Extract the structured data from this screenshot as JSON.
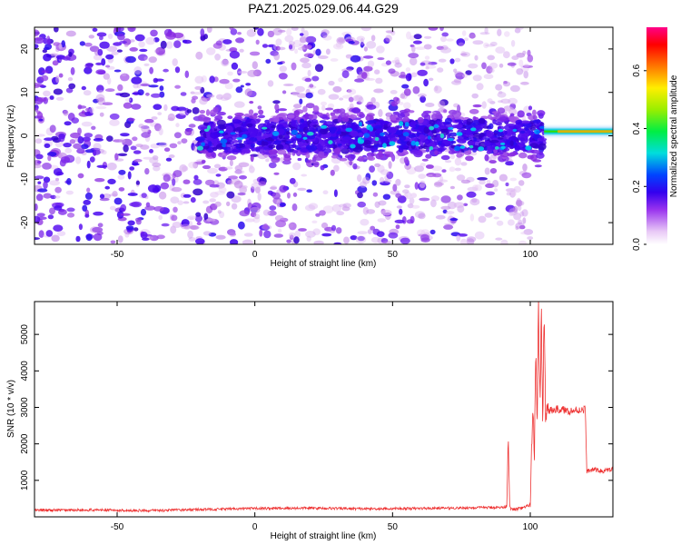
{
  "title": "PAZ1.2025.029.06.44.G29",
  "chart_data": [
    {
      "type": "heatmap",
      "xlabel": "Height of straight line (km)",
      "ylabel": "Frequency (Hz)",
      "xlim": [
        -80,
        130
      ],
      "ylim": [
        -25,
        25
      ],
      "xticks": [
        -50,
        0,
        50,
        100
      ],
      "yticks": [
        -20,
        -10,
        0,
        10,
        20
      ],
      "xtick_labels": [
        "-50",
        "0",
        "50",
        "100"
      ],
      "ytick_labels": [
        "-20",
        "-10",
        "0",
        "10",
        "20"
      ],
      "colorbar": {
        "label": "Normalized spectral amplitude",
        "range": [
          0,
          0.75
        ],
        "ticks": [
          0,
          0.2,
          0.4,
          0.6
        ],
        "tick_labels": [
          "0.0",
          "0.2",
          "0.4",
          "0.6"
        ],
        "colormap": "rainbow"
      },
      "features": {
        "scattered_noise_x": [
          -80,
          100
        ],
        "dense_band_x": [
          -20,
          105
        ],
        "dense_band_halfwidth_hz": 5,
        "tone_x": [
          105,
          130
        ],
        "tone_freq_hz": 1,
        "tone_peak_amplitude": 0.5
      }
    },
    {
      "type": "line",
      "xlabel": "Height of straight line (km)",
      "ylabel": "SNR (10 * v/v)",
      "xlim": [
        -80,
        130
      ],
      "ylim": [
        0,
        5900
      ],
      "xticks": [
        -50,
        0,
        50,
        100
      ],
      "yticks": [
        1000,
        2000,
        3000,
        4000,
        5000
      ],
      "xtick_labels": [
        "-50",
        "0",
        "50",
        "100"
      ],
      "ytick_labels": [
        "1000",
        "2000",
        "3000",
        "4000",
        "5000"
      ],
      "color": "#ee3333",
      "series": [
        {
          "x": [
            -80,
            -60,
            -40,
            -20,
            0,
            20,
            40,
            60,
            80,
            90,
            91.5,
            92,
            92.5,
            93,
            95,
            98,
            100,
            101,
            101.5,
            102,
            102.5,
            103,
            103.5,
            104,
            104.5,
            105,
            105.5,
            106,
            107,
            110,
            115,
            120,
            120.5,
            123,
            126,
            130
          ],
          "y": [
            180,
            190,
            170,
            200,
            230,
            240,
            220,
            230,
            250,
            260,
            300,
            2300,
            300,
            200,
            210,
            250,
            350,
            3000,
            1200,
            5000,
            2000,
            5800,
            3000,
            5700,
            2500,
            5800,
            3000,
            2800,
            2900,
            2950,
            2900,
            2950,
            1250,
            1300,
            1250,
            1300
          ]
        }
      ]
    }
  ]
}
